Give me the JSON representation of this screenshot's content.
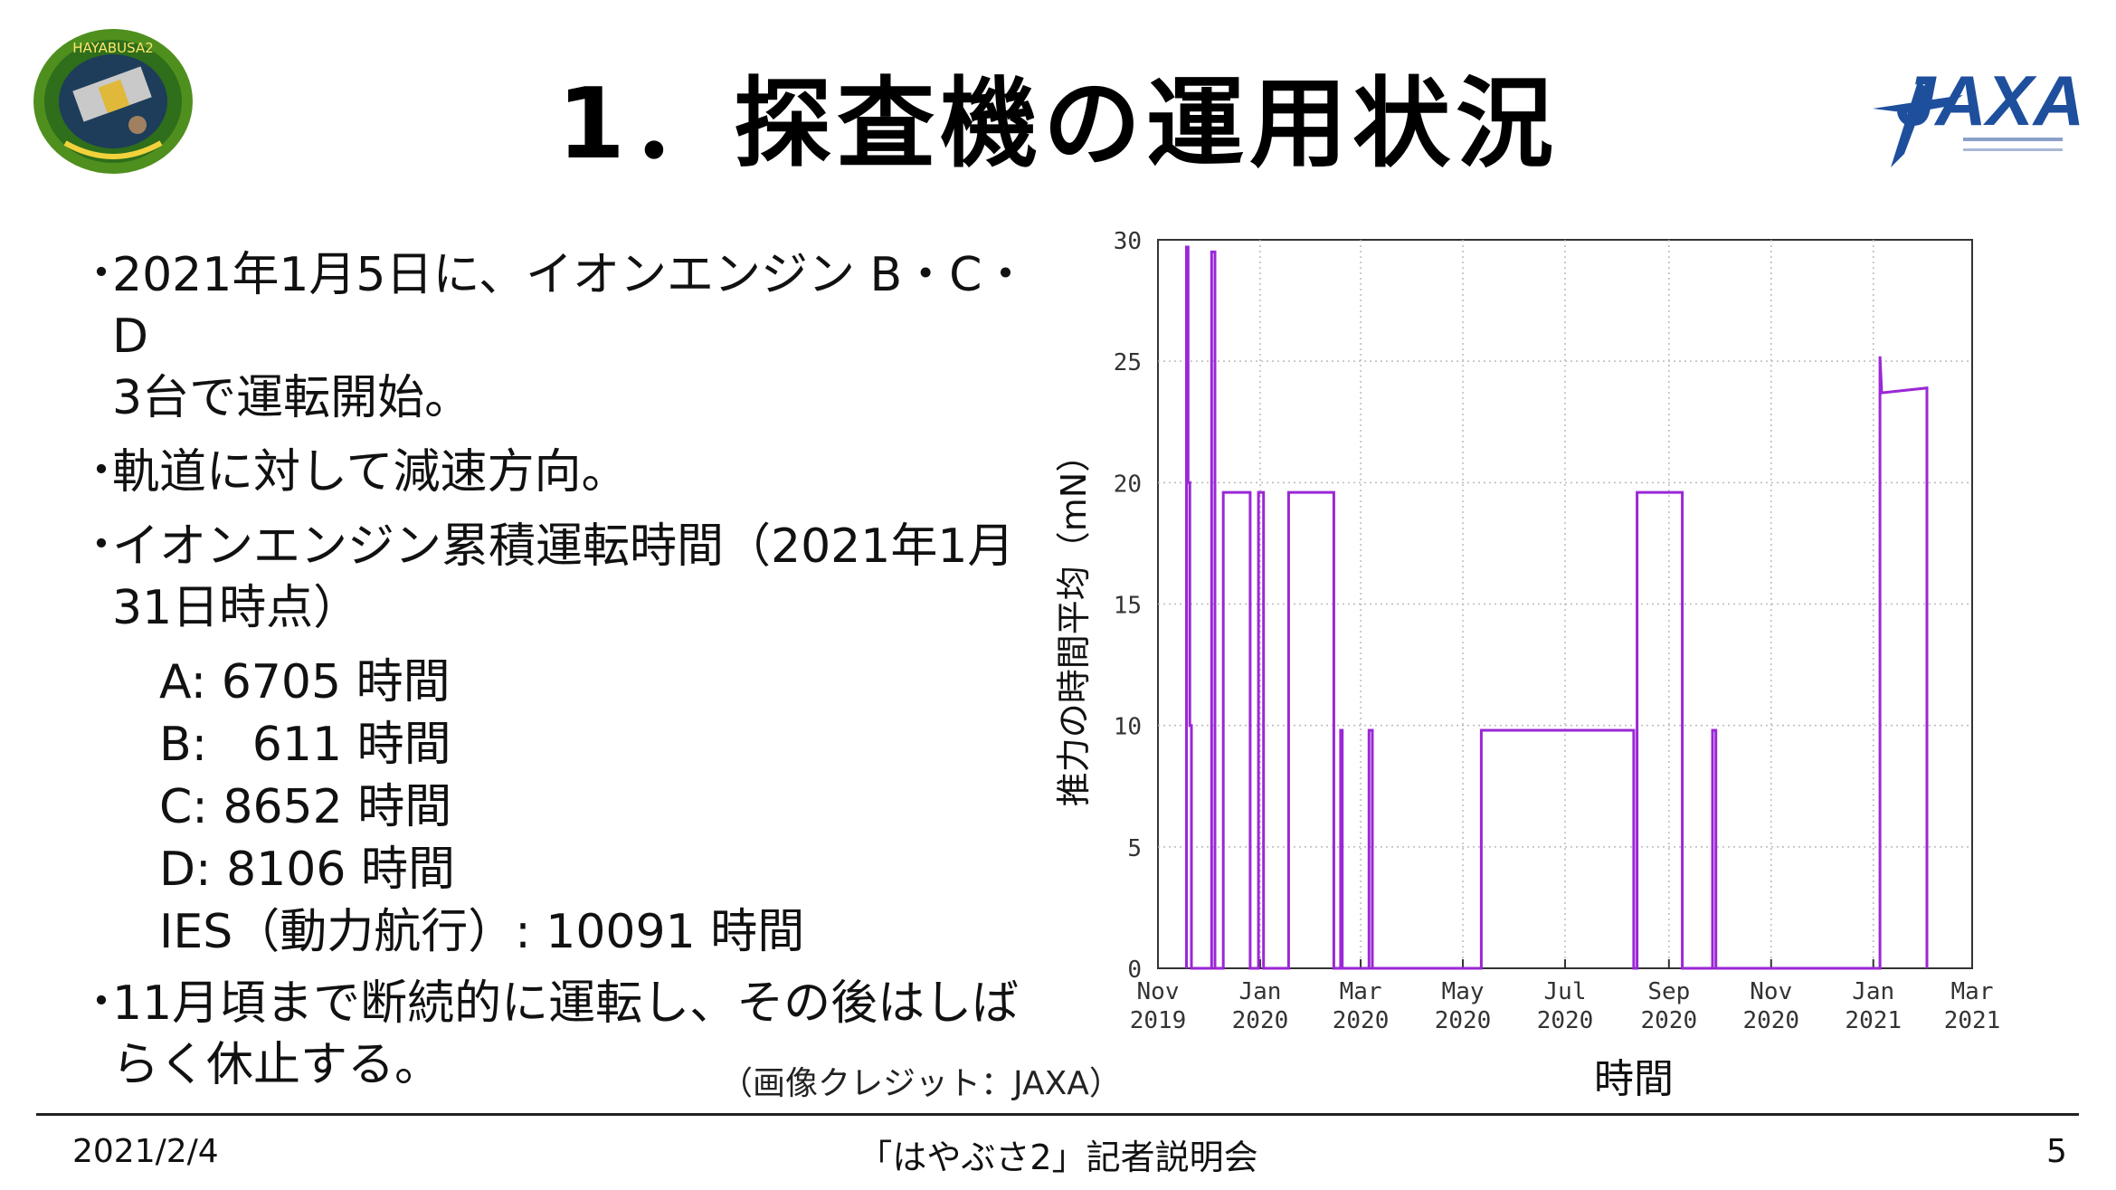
{
  "header": {
    "title": "1．探査機の運用状況",
    "mission_logo_text": "HAYABUSA2",
    "jaxa_logo_text": "JAXA"
  },
  "bullets": {
    "b1_line1": "2021年1月5日に、イオンエンジン B・C・D",
    "b1_line2": "3台で運転開始。",
    "b2_line1": "軌道に対して減速方向。",
    "b3_line1": "イオンエンジン累積運転時間（2021年1月",
    "b3_line2": "31日時点）",
    "b4_line1": "11月頃まで断続的に運転し、その後はしば",
    "b4_line2": "らく休止する。",
    "marker": "・"
  },
  "hours": [
    {
      "key": "A: ",
      "value": "6705 時間"
    },
    {
      "key": "B:   ",
      "value": "611 時間"
    },
    {
      "key": "C: ",
      "value": "8652 時間"
    },
    {
      "key": "D: ",
      "value": "8106 時間"
    },
    {
      "key": "IES（動力航行）: ",
      "value": "10091 時間"
    }
  ],
  "chart_data": {
    "type": "line",
    "ylabel": "推力の時間平均（mN）",
    "xlabel": "時間",
    "ylim": [
      0,
      30
    ],
    "yticks": [
      0,
      5,
      10,
      15,
      20,
      25,
      30
    ],
    "xrange": [
      "2019-11",
      "2021-03"
    ],
    "xtick_labels": [
      [
        "Nov",
        "2019"
      ],
      [
        "Jan",
        "2020"
      ],
      [
        "Mar",
        "2020"
      ],
      [
        "May",
        "2020"
      ],
      [
        "Jul",
        "2020"
      ],
      [
        "Sep",
        "2020"
      ],
      [
        "Nov",
        "2020"
      ],
      [
        "Jan",
        "2021"
      ],
      [
        "Mar",
        "2021"
      ]
    ],
    "grid": true,
    "line_color": "#9b27d6",
    "series": [
      {
        "values": [
          [
            "2019-11-18",
            0
          ],
          [
            "2019-11-18",
            29.7
          ],
          [
            "2019-11-19",
            29.7
          ],
          [
            "2019-11-19",
            20
          ],
          [
            "2019-11-20",
            20
          ],
          [
            "2019-11-20",
            10
          ],
          [
            "2019-11-21",
            10
          ],
          [
            "2019-11-21",
            0
          ],
          [
            "2019-12-03",
            0
          ],
          [
            "2019-12-03",
            29.5
          ],
          [
            "2019-12-05",
            29.5
          ],
          [
            "2019-12-05",
            0
          ],
          [
            "2019-12-10",
            0
          ],
          [
            "2019-12-10",
            19.6
          ],
          [
            "2019-12-26",
            19.6
          ],
          [
            "2019-12-26",
            0
          ],
          [
            "2019-12-31",
            0
          ],
          [
            "2019-12-31",
            19.6
          ],
          [
            "2020-01-03",
            19.6
          ],
          [
            "2020-01-03",
            0
          ],
          [
            "2020-01-18",
            0
          ],
          [
            "2020-01-18",
            19.6
          ],
          [
            "2020-02-14",
            19.6
          ],
          [
            "2020-02-14",
            0
          ],
          [
            "2020-02-18",
            0
          ],
          [
            "2020-02-18",
            9.8
          ],
          [
            "2020-02-19",
            9.8
          ],
          [
            "2020-02-19",
            0
          ],
          [
            "2020-03-06",
            0
          ],
          [
            "2020-03-06",
            9.8
          ],
          [
            "2020-03-08",
            9.8
          ],
          [
            "2020-03-08",
            0
          ],
          [
            "2020-05-12",
            0
          ],
          [
            "2020-05-12",
            9.8
          ],
          [
            "2020-08-11",
            9.8
          ],
          [
            "2020-08-11",
            0
          ],
          [
            "2020-08-13",
            0
          ],
          [
            "2020-08-13",
            19.6
          ],
          [
            "2020-09-09",
            19.6
          ],
          [
            "2020-09-09",
            0
          ],
          [
            "2020-09-27",
            0
          ],
          [
            "2020-09-27",
            9.8
          ],
          [
            "2020-09-29",
            9.8
          ],
          [
            "2020-09-29",
            0
          ],
          [
            "2021-01-05",
            0
          ],
          [
            "2021-01-05",
            25.2
          ],
          [
            "2021-01-06",
            23.7
          ],
          [
            "2021-02-02",
            23.9
          ],
          [
            "2021-02-02",
            0
          ]
        ]
      }
    ]
  },
  "credit": "（画像クレジット：JAXA）",
  "footer": {
    "date": "2021/2/4",
    "center": "「はやぶさ2」記者説明会",
    "page": "5"
  }
}
